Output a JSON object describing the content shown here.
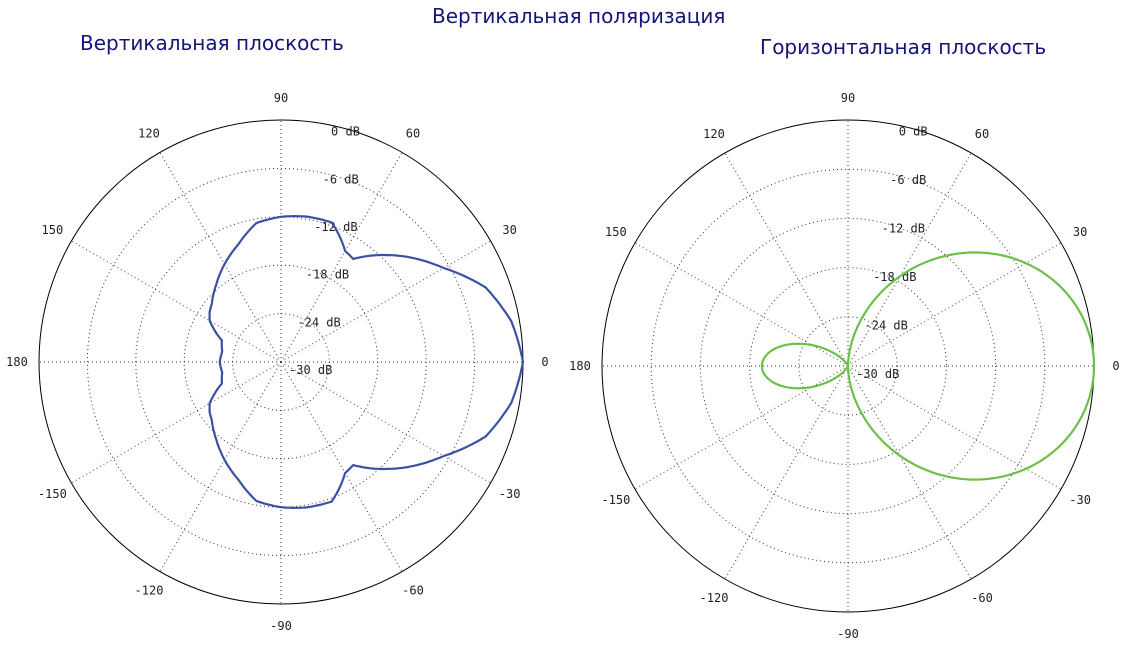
{
  "titles": {
    "main": "Вертикальная поляризация",
    "left": "Вертикальная плоскость",
    "right": "Горизонтальная плоскость"
  },
  "colors": {
    "left_trace": "#3a51a3",
    "right_trace": "#6cc04a",
    "grid": "#333333"
  },
  "chart_data": [
    {
      "type": "polar",
      "title": "Вертикальная плоскость",
      "angle_unit": "deg",
      "angle_ticks": [
        "0",
        "30",
        "60",
        "90",
        "120",
        "150",
        "180",
        "-150",
        "-120",
        "-90",
        "-60",
        "-30"
      ],
      "radial_ticks": [
        "0 dB",
        "-6 dB",
        "-12 dB",
        "-18 dB",
        "-24 dB",
        "-30 dB"
      ],
      "rlim_db": [
        -30,
        0
      ],
      "grid": true,
      "series": [
        {
          "angles_deg": [
            0,
            10,
            20,
            30,
            40,
            50,
            55,
            60,
            65,
            70,
            80,
            90,
            100,
            110,
            120,
            130,
            140,
            145,
            150,
            160,
            170,
            180,
            190,
            200,
            210,
            215,
            220,
            230,
            240,
            250,
            260,
            270,
            280,
            290,
            295,
            300,
            305,
            310,
            320,
            330,
            340,
            350,
            360
          ],
          "values_db": [
            0,
            -1,
            -3,
            -6.7,
            -9.7,
            -12.8,
            -14.4,
            -14.1,
            -12.8,
            -11.6,
            -11.7,
            -12,
            -12.5,
            -14.5,
            -16,
            -17.5,
            -18.8,
            -19.2,
            -19.8,
            -22.2,
            -22.6,
            -22.4,
            -22.6,
            -22.2,
            -19.8,
            -19.2,
            -18.8,
            -17.5,
            -16,
            -14.5,
            -12.5,
            -12,
            -11.7,
            -11.6,
            -12.8,
            -14.1,
            -14.4,
            -12.8,
            -9.7,
            -6.7,
            -3,
            -1,
            0
          ]
        }
      ]
    },
    {
      "type": "polar",
      "title": "Горизонтальная плоскость",
      "angle_unit": "deg",
      "angle_ticks": [
        "0",
        "30",
        "60",
        "90",
        "120",
        "150",
        "180",
        "-150",
        "-120",
        "-90",
        "-60",
        "-30"
      ],
      "radial_ticks": [
        "0 dB",
        "-6 dB",
        "-12 dB",
        "-18 dB",
        "-24 dB",
        "-30 dB"
      ],
      "rlim_db": [
        -30,
        0
      ],
      "grid": true,
      "series": [
        {
          "pattern": "cardioid_with_back_lobe",
          "main_lobe_peak_db": 0,
          "main_lobe_direction_deg": 0,
          "back_lobe_peak_db": -19.5,
          "back_lobe_direction_deg": 180
        }
      ]
    }
  ]
}
